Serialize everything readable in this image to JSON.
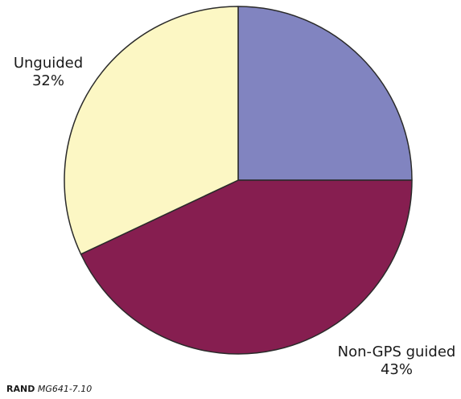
{
  "chart_data": {
    "type": "pie",
    "slices": [
      {
        "label": "",
        "percent_label": "",
        "value": 25,
        "color": "#8184C0"
      },
      {
        "label": "Non-GPS guided",
        "percent_label": "43%",
        "value": 43,
        "color": "#861E50"
      },
      {
        "label": "Unguided",
        "percent_label": "32%",
        "value": 32,
        "color": "#FCF7C4"
      }
    ],
    "start_angle_deg": 0,
    "direction": "clockwise",
    "outline_color": "#2a2a2a"
  },
  "source_note": {
    "org": "RAND",
    "code": "MG641-7.10"
  }
}
